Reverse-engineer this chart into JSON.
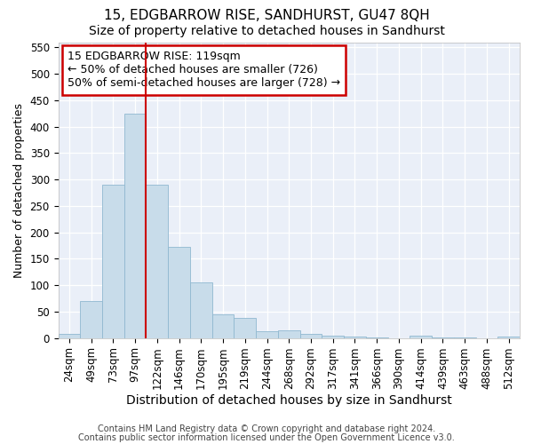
{
  "title": "15, EDGBARROW RISE, SANDHURST, GU47 8QH",
  "subtitle": "Size of property relative to detached houses in Sandhurst",
  "xlabel": "Distribution of detached houses by size in Sandhurst",
  "ylabel": "Number of detached properties",
  "categories": [
    "24sqm",
    "49sqm",
    "73sqm",
    "97sqm",
    "122sqm",
    "146sqm",
    "170sqm",
    "195sqm",
    "219sqm",
    "244sqm",
    "268sqm",
    "292sqm",
    "317sqm",
    "341sqm",
    "366sqm",
    "390sqm",
    "414sqm",
    "439sqm",
    "463sqm",
    "488sqm",
    "512sqm"
  ],
  "values": [
    8,
    70,
    290,
    425,
    290,
    172,
    105,
    44,
    38,
    13,
    15,
    7,
    4,
    2,
    1,
    0,
    4,
    1,
    1,
    0,
    3
  ],
  "bar_color": "#c8dcea",
  "bar_edge_color": "#90b8d0",
  "background_color": "#eaeff8",
  "grid_color": "#ffffff",
  "vline_color": "#cc0000",
  "annotation_line1": "15 EDGBARROW RISE: 119sqm",
  "annotation_line2": "← 50% of detached houses are smaller (726)",
  "annotation_line3": "50% of semi-detached houses are larger (728) →",
  "annotation_box_color": "#cc0000",
  "ylim": [
    0,
    560
  ],
  "yticks": [
    0,
    50,
    100,
    150,
    200,
    250,
    300,
    350,
    400,
    450,
    500,
    550
  ],
  "footer_line1": "Contains HM Land Registry data © Crown copyright and database right 2024.",
  "footer_line2": "Contains public sector information licensed under the Open Government Licence v3.0.",
  "title_fontsize": 11,
  "subtitle_fontsize": 10,
  "xlabel_fontsize": 10,
  "ylabel_fontsize": 9,
  "tick_fontsize": 8.5,
  "annotation_fontsize": 9,
  "footer_fontsize": 7
}
